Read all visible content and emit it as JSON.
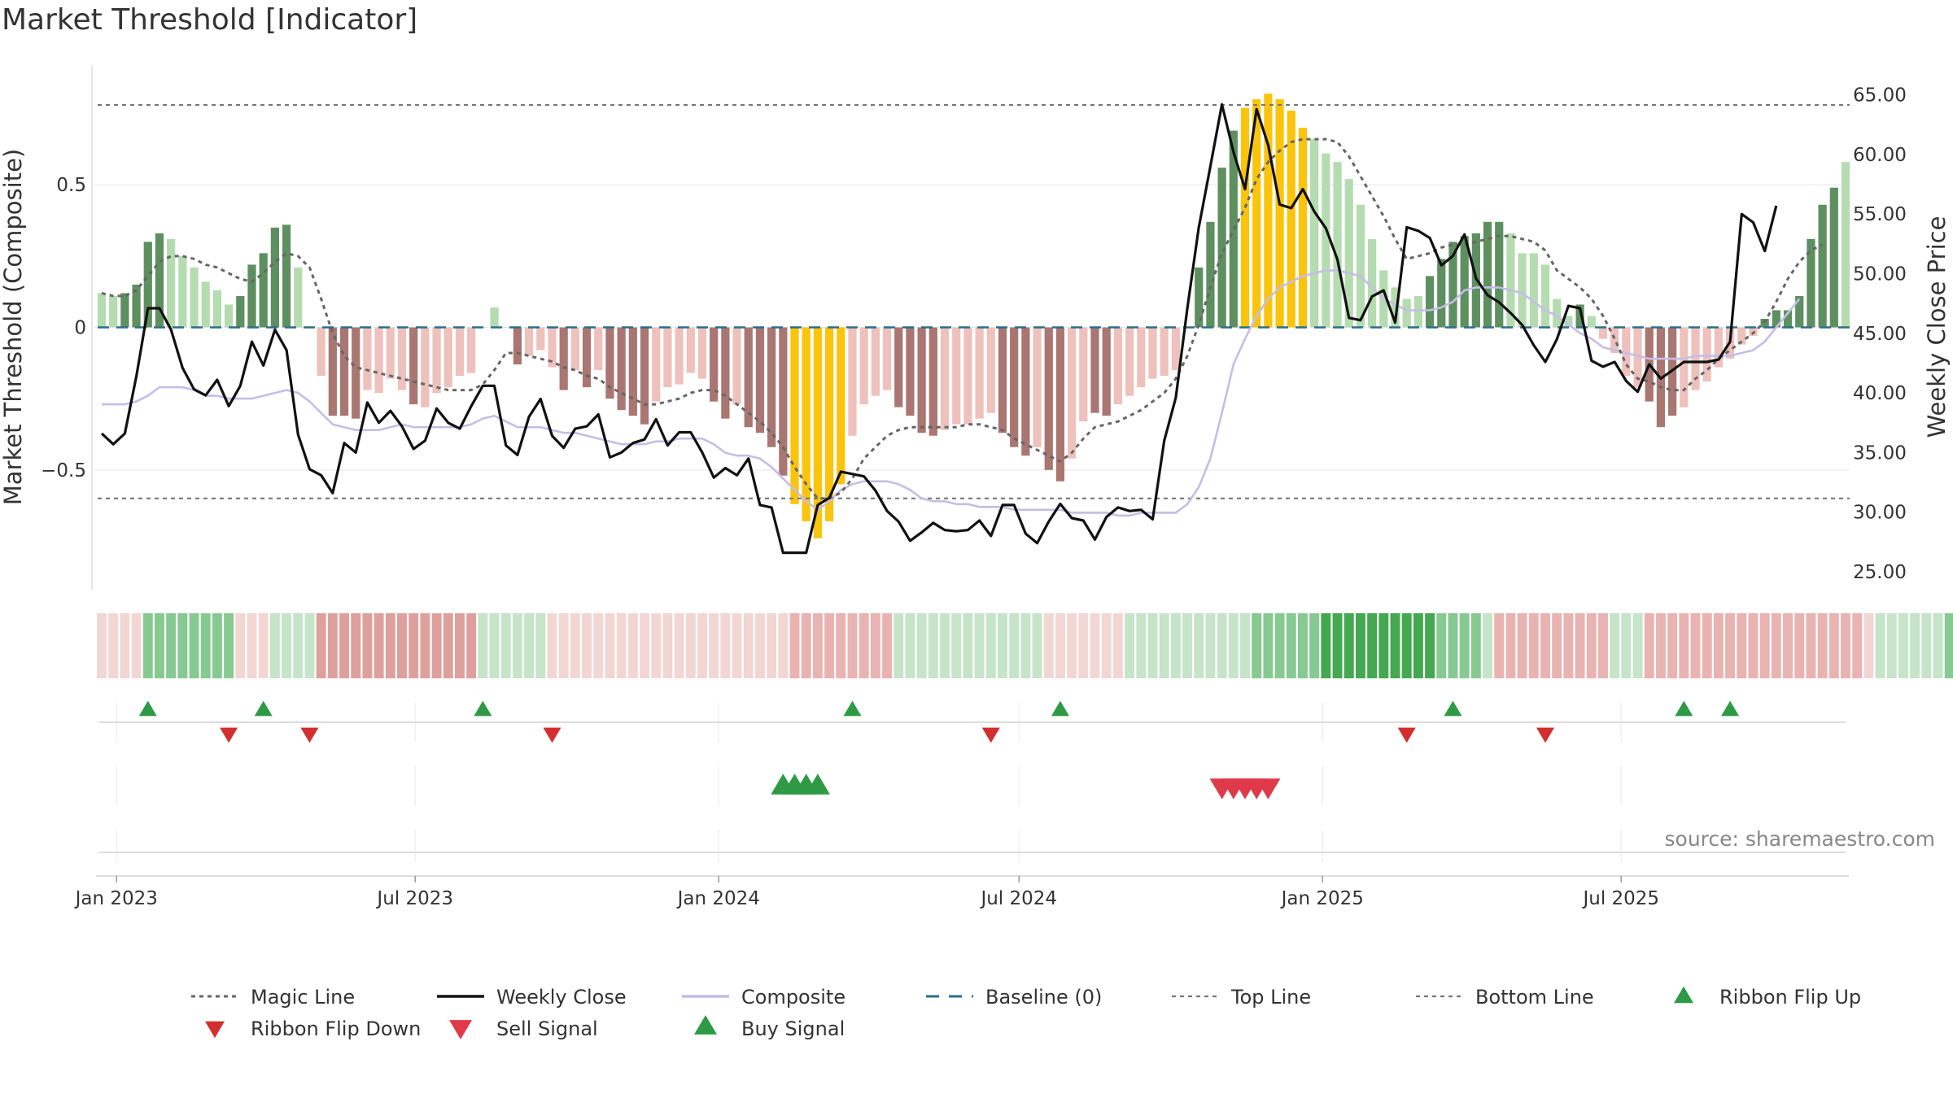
{
  "title": "Market Threshold [Indicator]",
  "source": "source: sharemaestro.com",
  "chart_data": {
    "type": "bar",
    "x_start": "2022-12-23",
    "x_step_days": 7,
    "x_ticks": [
      "Jan 2023",
      "Jul 2023",
      "Jan 2024",
      "Jul 2024",
      "Jan 2025",
      "Jul 2025"
    ],
    "x_tick_dates": [
      "2023-01-01",
      "2023-07-01",
      "2024-01-01",
      "2024-07-01",
      "2025-01-01",
      "2025-07-01"
    ],
    "ylabel_left": "Market Threshold (Composite)",
    "ylabel_right": "Weekly Close Price",
    "ylim_left": [
      -0.92,
      0.92
    ],
    "ylim_right": [
      23.5,
      67.5
    ],
    "left_ticks": [
      0.5,
      0,
      -0.5
    ],
    "left_tick_labels": [
      "0.5",
      "0",
      "−0.5"
    ],
    "right_ticks": [
      25,
      30,
      35,
      40,
      45,
      50,
      55,
      60,
      65
    ],
    "right_tick_labels": [
      "25.00",
      "30.00",
      "35.00",
      "40.00",
      "45.00",
      "50.00",
      "55.00",
      "60.00",
      "65.00"
    ],
    "top_line": 0.78,
    "bottom_line": -0.6,
    "baseline": 0,
    "colors": {
      "strong_pos": "#5e8f60",
      "weak_pos": "#b5dcb0",
      "strong_neg": "#a97672",
      "weak_neg": "#eec1bc",
      "extreme": "#fbc40c",
      "weekly_close": "#111111",
      "composite": "#c5bde6",
      "magic": "#666666",
      "baseline": "#2c6e8a",
      "ref_line": "#777777",
      "buy": "#2e9a45",
      "sell": "#e0394a",
      "flip_up": "#2e9a45",
      "flip_down": "#d32f2f"
    },
    "bar_values": [
      0.12,
      0.11,
      0.12,
      0.15,
      0.3,
      0.33,
      0.31,
      0.25,
      0.21,
      0.16,
      0.13,
      0.08,
      0.11,
      0.22,
      0.26,
      0.35,
      0.36,
      0.21,
      0.0,
      -0.17,
      -0.31,
      -0.31,
      -0.32,
      -0.22,
      -0.23,
      -0.18,
      -0.22,
      -0.27,
      -0.28,
      -0.23,
      -0.21,
      -0.17,
      -0.16,
      0.0,
      0.07,
      0.0,
      -0.13,
      -0.1,
      -0.08,
      -0.14,
      -0.22,
      -0.15,
      -0.21,
      -0.15,
      -0.25,
      -0.29,
      -0.31,
      -0.34,
      -0.26,
      -0.21,
      -0.2,
      -0.16,
      -0.18,
      -0.26,
      -0.32,
      -0.27,
      -0.35,
      -0.37,
      -0.42,
      -0.52,
      -0.62,
      -0.68,
      -0.74,
      -0.68,
      -0.55,
      -0.38,
      -0.27,
      -0.24,
      -0.22,
      -0.28,
      -0.31,
      -0.37,
      -0.38,
      -0.36,
      -0.34,
      -0.34,
      -0.32,
      -0.3,
      -0.37,
      -0.42,
      -0.45,
      -0.42,
      -0.5,
      -0.54,
      -0.46,
      -0.33,
      -0.3,
      -0.31,
      -0.27,
      -0.24,
      -0.21,
      -0.18,
      -0.17,
      -0.15,
      0.0,
      0.21,
      0.37,
      0.56,
      0.69,
      0.77,
      0.8,
      0.82,
      0.8,
      0.76,
      0.7,
      0.66,
      0.61,
      0.58,
      0.52,
      0.43,
      0.31,
      0.2,
      0.14,
      0.1,
      0.11,
      0.18,
      0.24,
      0.3,
      0.32,
      0.33,
      0.37,
      0.37,
      0.33,
      0.26,
      0.26,
      0.22,
      0.1,
      0.04,
      0.08,
      0.04,
      -0.04,
      -0.09,
      -0.17,
      -0.21,
      -0.26,
      -0.35,
      -0.31,
      -0.28,
      -0.22,
      -0.19,
      -0.14,
      -0.11,
      -0.06,
      -0.03,
      0.03,
      0.06,
      0.06,
      0.11,
      0.31,
      0.43,
      0.49,
      0.58
    ],
    "bar_classes": [
      "W",
      "W",
      "S",
      "S",
      "S",
      "S",
      "W",
      "W",
      "W",
      "W",
      "W",
      "W",
      "S",
      "S",
      "S",
      "S",
      "S",
      "W",
      "W",
      "W",
      "S",
      "S",
      "S",
      "W",
      "W",
      "W",
      "W",
      "S",
      "W",
      "W",
      "W",
      "W",
      "W",
      "W",
      "W",
      "W",
      "S",
      "W",
      "W",
      "W",
      "S",
      "W",
      "S",
      "W",
      "S",
      "S",
      "S",
      "S",
      "W",
      "W",
      "W",
      "W",
      "W",
      "S",
      "S",
      "W",
      "S",
      "S",
      "S",
      "S",
      "E",
      "E",
      "E",
      "E",
      "E",
      "W",
      "W",
      "W",
      "W",
      "S",
      "S",
      "S",
      "S",
      "W",
      "W",
      "W",
      "W",
      "W",
      "S",
      "S",
      "S",
      "W",
      "S",
      "S",
      "W",
      "W",
      "S",
      "S",
      "W",
      "W",
      "W",
      "W",
      "W",
      "W",
      "W",
      "S",
      "S",
      "S",
      "S",
      "E",
      "E",
      "E",
      "E",
      "E",
      "E",
      "W",
      "W",
      "W",
      "W",
      "W",
      "W",
      "W",
      "W",
      "W",
      "W",
      "S",
      "S",
      "S",
      "S",
      "S",
      "S",
      "S",
      "W",
      "W",
      "W",
      "W",
      "W",
      "W",
      "S",
      "W",
      "W",
      "W",
      "W",
      "W",
      "S",
      "S",
      "S",
      "W",
      "W",
      "W",
      "W",
      "W",
      "W",
      "W",
      "S",
      "S",
      "S",
      "S",
      "S",
      "S",
      "S"
    ],
    "weekly_close": [
      36.6,
      35.7,
      36.6,
      41.4,
      47.1,
      47.1,
      45.3,
      42.1,
      40.3,
      39.8,
      41.1,
      38.9,
      40.6,
      44.3,
      42.3,
      45.3,
      43.6,
      36.5,
      33.6,
      33.1,
      31.6,
      35.8,
      35.0,
      39.2,
      37.5,
      38.5,
      37.2,
      35.3,
      36.0,
      38.7,
      37.5,
      37.0,
      38.9,
      40.6,
      40.6,
      35.6,
      34.8,
      38.0,
      39.5,
      36.4,
      35.4,
      37.0,
      37.2,
      38.2,
      34.6,
      35.0,
      35.8,
      36.1,
      37.8,
      35.6,
      36.7,
      36.7,
      35.0,
      32.9,
      33.7,
      33.1,
      34.5,
      30.6,
      30.4,
      26.6,
      26.6,
      26.6,
      30.6,
      31.2,
      33.4,
      33.2,
      33.0,
      31.8,
      30.1,
      29.2,
      27.6,
      28.3,
      29.1,
      28.5,
      28.4,
      28.5,
      29.3,
      28.0,
      30.6,
      30.6,
      28.2,
      27.4,
      29.2,
      30.7,
      29.5,
      29.3,
      27.7,
      29.6,
      30.4,
      30.1,
      30.2,
      29.4,
      36.0,
      39.6,
      47.1,
      53.9,
      59.0,
      64.2,
      60.2,
      57.1,
      63.8,
      60.8,
      55.8,
      55.5,
      57.1,
      55.2,
      53.8,
      51.2,
      46.3,
      46.1,
      48.1,
      48.6,
      45.9,
      53.9,
      53.6,
      53.0,
      50.7,
      51.5,
      53.3,
      49.6,
      48.2,
      47.6,
      46.7,
      45.7,
      44.0,
      42.6,
      44.5,
      47.3,
      47.1,
      42.7,
      42.2,
      42.6,
      41.0,
      40.1,
      42.4,
      41.2,
      41.9,
      42.6,
      42.6,
      42.6,
      42.8,
      44.3,
      55.0,
      54.3,
      51.9,
      55.7
    ],
    "composite": [
      -0.27,
      -0.27,
      -0.27,
      -0.26,
      -0.24,
      -0.21,
      -0.21,
      -0.21,
      -0.22,
      -0.24,
      -0.24,
      -0.25,
      -0.25,
      -0.25,
      -0.24,
      -0.23,
      -0.22,
      -0.23,
      -0.26,
      -0.3,
      -0.34,
      -0.35,
      -0.36,
      -0.36,
      -0.36,
      -0.35,
      -0.34,
      -0.35,
      -0.35,
      -0.35,
      -0.35,
      -0.35,
      -0.34,
      -0.32,
      -0.31,
      -0.33,
      -0.35,
      -0.35,
      -0.35,
      -0.36,
      -0.37,
      -0.37,
      -0.38,
      -0.39,
      -0.4,
      -0.41,
      -0.41,
      -0.41,
      -0.4,
      -0.4,
      -0.39,
      -0.39,
      -0.39,
      -0.41,
      -0.44,
      -0.45,
      -0.45,
      -0.46,
      -0.49,
      -0.53,
      -0.57,
      -0.61,
      -0.64,
      -0.61,
      -0.57,
      -0.55,
      -0.54,
      -0.54,
      -0.54,
      -0.55,
      -0.57,
      -0.6,
      -0.61,
      -0.61,
      -0.62,
      -0.62,
      -0.63,
      -0.63,
      -0.63,
      -0.64,
      -0.64,
      -0.64,
      -0.64,
      -0.64,
      -0.65,
      -0.65,
      -0.65,
      -0.65,
      -0.66,
      -0.66,
      -0.65,
      -0.65,
      -0.65,
      -0.65,
      -0.62,
      -0.56,
      -0.46,
      -0.3,
      -0.13,
      -0.04,
      0.04,
      0.1,
      0.14,
      0.16,
      0.18,
      0.19,
      0.2,
      0.2,
      0.19,
      0.18,
      0.14,
      0.1,
      0.08,
      0.06,
      0.06,
      0.06,
      0.07,
      0.09,
      0.13,
      0.14,
      0.14,
      0.14,
      0.13,
      0.12,
      0.09,
      0.06,
      0.04,
      0.01,
      -0.02,
      -0.04,
      -0.07,
      -0.08,
      -0.09,
      -0.1,
      -0.11,
      -0.11,
      -0.11,
      -0.11,
      -0.1,
      -0.1,
      -0.1,
      -0.1,
      -0.09,
      -0.08,
      -0.05,
      0.0,
      0.05,
      0.1
    ],
    "magic_line": [
      0.12,
      0.11,
      0.11,
      0.13,
      0.18,
      0.23,
      0.25,
      0.25,
      0.24,
      0.22,
      0.21,
      0.19,
      0.17,
      0.16,
      0.19,
      0.23,
      0.26,
      0.25,
      0.21,
      0.1,
      -0.02,
      -0.1,
      -0.14,
      -0.15,
      -0.16,
      -0.17,
      -0.18,
      -0.19,
      -0.2,
      -0.21,
      -0.22,
      -0.22,
      -0.22,
      -0.2,
      -0.15,
      -0.09,
      -0.09,
      -0.1,
      -0.11,
      -0.12,
      -0.14,
      -0.15,
      -0.17,
      -0.18,
      -0.21,
      -0.23,
      -0.25,
      -0.27,
      -0.27,
      -0.26,
      -0.25,
      -0.23,
      -0.22,
      -0.22,
      -0.24,
      -0.27,
      -0.3,
      -0.33,
      -0.37,
      -0.42,
      -0.49,
      -0.55,
      -0.6,
      -0.6,
      -0.58,
      -0.53,
      -0.46,
      -0.42,
      -0.38,
      -0.36,
      -0.35,
      -0.35,
      -0.35,
      -0.35,
      -0.35,
      -0.34,
      -0.34,
      -0.35,
      -0.36,
      -0.39,
      -0.41,
      -0.43,
      -0.45,
      -0.47,
      -0.44,
      -0.39,
      -0.35,
      -0.34,
      -0.33,
      -0.31,
      -0.29,
      -0.26,
      -0.23,
      -0.18,
      -0.1,
      0.01,
      0.14,
      0.26,
      0.34,
      0.42,
      0.52,
      0.58,
      0.62,
      0.65,
      0.66,
      0.66,
      0.66,
      0.65,
      0.6,
      0.53,
      0.46,
      0.39,
      0.31,
      0.24,
      0.25,
      0.26,
      0.28,
      0.29,
      0.29,
      0.3,
      0.31,
      0.32,
      0.32,
      0.31,
      0.3,
      0.27,
      0.2,
      0.17,
      0.14,
      0.1,
      0.04,
      -0.04,
      -0.13,
      -0.18,
      -0.19,
      -0.21,
      -0.22,
      -0.22,
      -0.18,
      -0.15,
      -0.11,
      -0.08,
      -0.05,
      -0.02,
      0.02,
      0.09,
      0.17,
      0.23,
      0.27,
      0.29
    ],
    "ribbon": [
      -1,
      -1,
      -1,
      -1,
      2,
      2,
      2,
      2,
      2,
      2,
      2,
      2,
      -1,
      -1,
      -1,
      1,
      1,
      1,
      1,
      -3,
      -3,
      -3,
      -3,
      -3,
      -3,
      -3,
      -3,
      -3,
      -3,
      -3,
      -3,
      -3,
      -3,
      1,
      1,
      1,
      1,
      1,
      1,
      -1,
      -1,
      -1,
      -1,
      -1,
      -1,
      -1,
      -1,
      -1,
      -1,
      -1,
      -1,
      -1,
      -1,
      -1,
      -1,
      -1,
      -1,
      -1,
      -1,
      -1,
      -2,
      -2,
      -2,
      -2,
      -2,
      -2,
      -2,
      -2,
      -2,
      1,
      1,
      1,
      1,
      1,
      1,
      1,
      1,
      1,
      1,
      1,
      1,
      1,
      -1,
      -1,
      -1,
      -1,
      -1,
      -1,
      -1,
      1,
      1,
      1,
      1,
      1,
      1,
      1,
      1,
      1,
      1,
      1,
      2,
      2,
      2,
      2,
      2,
      2,
      3,
      3,
      3,
      3,
      3,
      3,
      3,
      3,
      3,
      3,
      2,
      2,
      2,
      2,
      1,
      -2,
      -2,
      -2,
      -2,
      -2,
      -2,
      -2,
      -2,
      -2,
      -2,
      1,
      1,
      1,
      -2,
      -2,
      -2,
      -2,
      -2,
      -2,
      -2,
      -2,
      -2,
      -2,
      -2,
      -2,
      -2,
      -2,
      -2,
      -2,
      -2,
      -2,
      -2,
      -1,
      1,
      1,
      1,
      1,
      1,
      1,
      2,
      2,
      2
    ],
    "ribbon_flip_up_idx": [
      4,
      14,
      33,
      65,
      83,
      117,
      137,
      141
    ],
    "ribbon_flip_down_idx": [
      11,
      18,
      39,
      77,
      113,
      125
    ],
    "buy_signal_idx": [
      59,
      60,
      61,
      62
    ],
    "sell_signal_idx": [
      97,
      98,
      99,
      100,
      101
    ],
    "legend": [
      {
        "label": "Magic Line",
        "style": "magic"
      },
      {
        "label": "Weekly Close",
        "style": "close"
      },
      {
        "label": "Composite",
        "style": "composite"
      },
      {
        "label": "Baseline (0)",
        "style": "baseline"
      },
      {
        "label": "Top Line",
        "style": "ref"
      },
      {
        "label": "Bottom Line",
        "style": "ref"
      },
      {
        "label": "Ribbon Flip Up",
        "style": "flip_up"
      },
      {
        "label": "Ribbon Flip Down",
        "style": "flip_down"
      },
      {
        "label": "Sell Signal",
        "style": "sell"
      },
      {
        "label": "Buy Signal",
        "style": "buy"
      }
    ]
  }
}
